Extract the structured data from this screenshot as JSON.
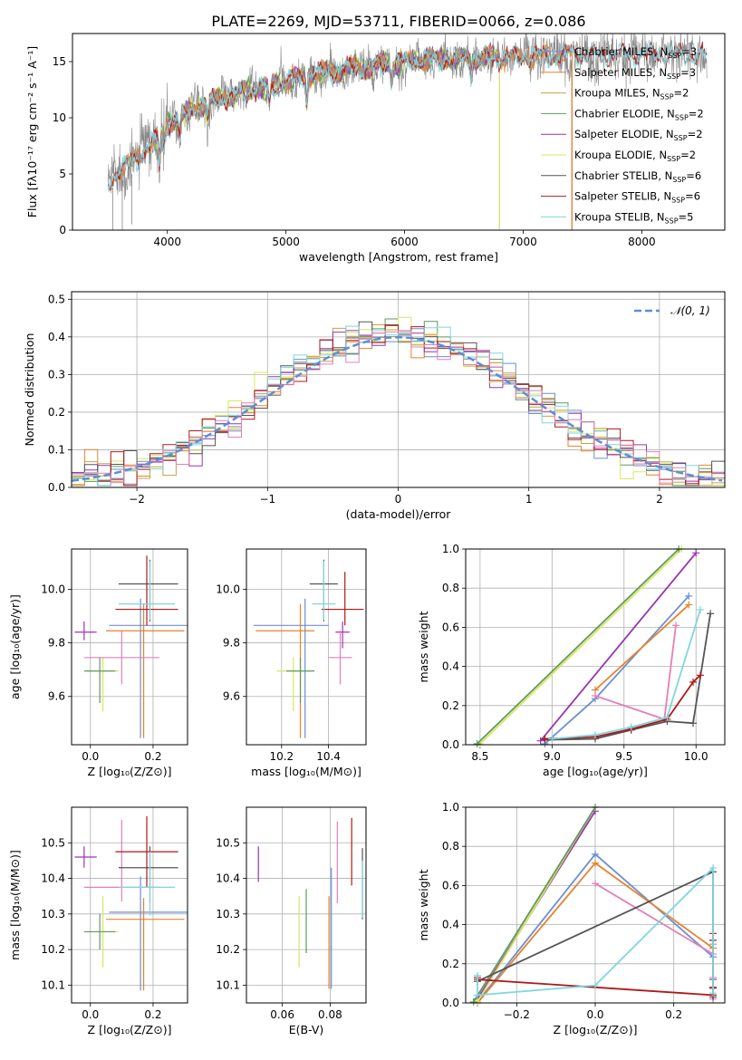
{
  "title": "PLATE=2269, MJD=53711, FIBERID=0066, z=0.086",
  "colors": {
    "chabrier_miles": "#6b8fd4",
    "salpeter_miles": "#e8822d",
    "kroupa_miles": "#c8a04a",
    "chabrier_elodie": "#5f9a5f",
    "salpeter_elodie": "#9a35b0",
    "kroupa_elodie": "#d7e860",
    "chabrier_stelib": "#555555",
    "salpeter_stelib": "#b01818",
    "kroupa_stelib": "#7fd6df",
    "pink": "#e57fb8",
    "gauss": "#5b8fd6",
    "data": "#888888"
  },
  "chart_data": [
    {
      "id": "spectrum",
      "type": "line",
      "title": "PLATE=2269, MJD=53711, FIBERID=0066, z=0.086",
      "xlabel": "wavelength [Angstrom, rest frame]",
      "ylabel": "Flux [fλ10⁻¹⁷ erg cm⁻² s⁻¹ A⁻¹]",
      "xlim": [
        3200,
        8700
      ],
      "ylim": [
        0,
        17.5
      ],
      "xticks": [
        "4000",
        "5000",
        "6000",
        "7000",
        "8000"
      ],
      "xtick_values": [
        4000,
        5000,
        6000,
        7000,
        8000
      ],
      "yticks": [
        "0",
        "5",
        "10",
        "15"
      ],
      "ytick_values": [
        0,
        5,
        10,
        15
      ],
      "grid": false,
      "legend_position": "top-right",
      "legend": [
        {
          "name": "Chabrier MILES",
          "nssp": "3"
        },
        {
          "name": "Salpeter MILES",
          "nssp": "3"
        },
        {
          "name": "Kroupa MILES",
          "nssp": "2"
        },
        {
          "name": "Chabrier ELODIE",
          "nssp": "2"
        },
        {
          "name": "Salpeter ELODIE",
          "nssp": "2"
        },
        {
          "name": "Kroupa ELODIE",
          "nssp": "2"
        },
        {
          "name": "Chabrier STELIB",
          "nssp": "6"
        },
        {
          "name": "Salpeter STELIB",
          "nssp": "6"
        },
        {
          "name": "Kroupa STELIB",
          "nssp": "5"
        }
      ],
      "nssp_label": "N",
      "nssp_sub": "SSP",
      "trend": {
        "x": [
          3500,
          3700,
          3900,
          4000,
          4300,
          4600,
          4800,
          5000,
          5200,
          5500,
          5800,
          6000,
          6300,
          6600,
          6900,
          7200,
          7400
        ],
        "y": [
          4.5,
          6.0,
          8.0,
          9.5,
          11.2,
          12.2,
          12.7,
          13.2,
          13.8,
          14.3,
          14.7,
          15.0,
          15.2,
          15.3,
          15.4,
          15.5,
          15.6
        ]
      },
      "model_extent": {
        "miles": [
          3540,
          7410
        ],
        "elodie": [
          3900,
          6800
        ],
        "stelib": [
          3500,
          8550
        ]
      }
    },
    {
      "id": "residuals",
      "type": "bar",
      "xlabel": "(data-model)/error",
      "ylabel": "Normed distribution",
      "xlim": [
        -2.5,
        2.5
      ],
      "ylim": [
        0,
        0.52
      ],
      "xticks": [
        "−2",
        "−1",
        "0",
        "1",
        "2"
      ],
      "xtick_values": [
        -2,
        -1,
        0,
        1,
        2
      ],
      "yticks": [
        "0.0",
        "0.1",
        "0.2",
        "0.3",
        "0.4",
        "0.5"
      ],
      "ytick_values": [
        0,
        0.1,
        0.2,
        0.3,
        0.4,
        0.5
      ],
      "grid": true,
      "legend_position": "top-right",
      "legend_label": "𝒩(0, 1)",
      "bin_width": 0.1
    },
    {
      "id": "age_vs_z",
      "type": "scatter",
      "xlabel": "Z [log₁₀(Z/Z⊙)]",
      "ylabel": "age  [log₁₀(age/yr)]",
      "xlim": [
        -0.06,
        0.31
      ],
      "ylim": [
        9.42,
        10.15
      ],
      "xticks": [
        "0.0",
        "0.2"
      ],
      "xtick_values": [
        0,
        0.2
      ],
      "yticks": [
        "9.6",
        "9.8",
        "10.0"
      ],
      "ytick_values": [
        9.6,
        9.8,
        10.0
      ],
      "grid": true,
      "errorbars": [
        {
          "c": "chabrier_miles",
          "x": 0.16,
          "xerr": [
            0.1,
            0.15
          ],
          "y": 9.865,
          "yerr": [
            0.42,
            0.1
          ]
        },
        {
          "c": "salpeter_miles",
          "x": 0.17,
          "xerr": [
            0.12,
            0.13
          ],
          "y": 9.845,
          "yerr": [
            0.4,
            0.1
          ]
        },
        {
          "c": "salpeter_elodie",
          "x": -0.02,
          "xerr": [
            0.03,
            0.04
          ],
          "y": 9.84,
          "yerr": [
            0.03,
            0.04
          ]
        },
        {
          "c": "kroupa_elodie",
          "x": 0.04,
          "xerr": [
            0.05,
            0.05
          ],
          "y": 9.695,
          "yerr": [
            0.15,
            0.05
          ]
        },
        {
          "c": "chabrier_elodie",
          "x": 0.03,
          "xerr": [
            0.05,
            0.05
          ],
          "y": 9.695,
          "yerr": [
            0.12,
            0.05
          ]
        },
        {
          "c": "pink",
          "x": 0.1,
          "xerr": [
            0.12,
            0.12
          ],
          "y": 9.745,
          "yerr": [
            0.1,
            0.1
          ]
        },
        {
          "c": "chabrier_stelib",
          "x": 0.19,
          "xerr": [
            0.1,
            0.09
          ],
          "y": 10.02,
          "yerr": [
            0.14,
            0.09
          ]
        },
        {
          "c": "salpeter_stelib",
          "x": 0.18,
          "xerr": [
            0.1,
            0.1
          ],
          "y": 9.925,
          "yerr": [
            0.06,
            0.2
          ]
        },
        {
          "c": "kroupa_stelib",
          "x": 0.19,
          "xerr": [
            0.1,
            0.08
          ],
          "y": 9.945,
          "yerr": [
            0.06,
            0.16
          ]
        }
      ]
    },
    {
      "id": "age_vs_mass",
      "type": "scatter",
      "xlabel": "mass [log₁₀(M/M⊙)]",
      "ylabel": "",
      "xlim": [
        10.05,
        10.56
      ],
      "ylim": [
        9.42,
        10.15
      ],
      "xticks": [
        "10.2",
        "10.4"
      ],
      "xtick_values": [
        10.2,
        10.4
      ],
      "yticks": [
        "9.6",
        "9.8",
        "10.0"
      ],
      "ytick_values": [
        9.6,
        9.8,
        10.0
      ],
      "grid": true,
      "errorbars": [
        {
          "c": "chabrier_miles",
          "x": 10.3,
          "xerr": [
            0.22,
            0.1
          ],
          "y": 9.865,
          "yerr": [
            0.42,
            0.1
          ]
        },
        {
          "c": "salpeter_miles",
          "x": 10.28,
          "xerr": [
            0.19,
            0.06
          ],
          "y": 9.845,
          "yerr": [
            0.4,
            0.1
          ]
        },
        {
          "c": "salpeter_elodie",
          "x": 10.46,
          "xerr": [
            0.03,
            0.03
          ],
          "y": 9.84,
          "yerr": [
            0.06,
            0.04
          ]
        },
        {
          "c": "kroupa_elodie",
          "x": 10.25,
          "xerr": [
            0.07,
            0.07
          ],
          "y": 9.695,
          "yerr": [
            0.15,
            0.05
          ]
        },
        {
          "c": "chabrier_elodie",
          "x": 10.28,
          "xerr": [
            0.06,
            0.06
          ],
          "y": 9.695,
          "yerr": [
            0.12,
            0.05
          ]
        },
        {
          "c": "pink",
          "x": 10.45,
          "xerr": [
            0.05,
            0.05
          ],
          "y": 9.745,
          "yerr": [
            0.1,
            0.1
          ]
        },
        {
          "c": "chabrier_stelib",
          "x": 10.38,
          "xerr": [
            0.06,
            0.06
          ],
          "y": 10.02,
          "yerr": [
            0.14,
            0.09
          ]
        },
        {
          "c": "salpeter_stelib",
          "x": 10.47,
          "xerr": [
            0.1,
            0.08
          ],
          "y": 9.925,
          "yerr": [
            0.06,
            0.14
          ]
        },
        {
          "c": "kroupa_stelib",
          "x": 10.38,
          "xerr": [
            0.05,
            0.05
          ],
          "y": 9.945,
          "yerr": [
            0.06,
            0.16
          ]
        }
      ]
    },
    {
      "id": "weight_vs_age",
      "type": "line",
      "xlabel": "age  [log₁₀(age/yr)]",
      "ylabel": "mass weight",
      "xlim": [
        8.4,
        10.2
      ],
      "ylim": [
        0,
        1
      ],
      "xticks": [
        "8.5",
        "9.0",
        "9.5",
        "10.0"
      ],
      "xtick_values": [
        8.5,
        9.0,
        9.5,
        10.0
      ],
      "yticks": [
        "0.0",
        "0.2",
        "0.4",
        "0.6",
        "0.8",
        "1.0"
      ],
      "ytick_values": [
        0,
        0.2,
        0.4,
        0.6,
        0.8,
        1.0
      ],
      "grid": true,
      "series": [
        {
          "c": "chabrier_miles",
          "x": [
            8.95,
            9.3,
            9.95
          ],
          "y": [
            0.005,
            0.235,
            0.76
          ]
        },
        {
          "c": "salpeter_miles",
          "x": [
            9.3,
            9.95
          ],
          "y": [
            0.28,
            0.715
          ]
        },
        {
          "c": "salpeter_elodie",
          "x": [
            8.92,
            10.0
          ],
          "y": [
            0.02,
            0.98
          ]
        },
        {
          "c": "kroupa_elodie",
          "x": [
            8.5,
            9.9
          ],
          "y": [
            0.005,
            1.0
          ]
        },
        {
          "c": "chabrier_elodie",
          "x": [
            8.48,
            9.88
          ],
          "y": [
            0.005,
            1.0
          ]
        },
        {
          "c": "pink",
          "x": [
            9.3,
            9.78,
            9.86
          ],
          "y": [
            0.25,
            0.13,
            0.61
          ]
        },
        {
          "c": "chabrier_stelib",
          "x": [
            8.95,
            9.3,
            9.55,
            9.8,
            9.98,
            10.1
          ],
          "y": [
            0.025,
            0.03,
            0.075,
            0.12,
            0.11,
            0.67
          ]
        },
        {
          "c": "salpeter_stelib",
          "x": [
            8.95,
            9.3,
            9.55,
            9.8,
            9.98,
            10.03
          ],
          "y": [
            0.03,
            0.04,
            0.08,
            0.13,
            0.32,
            0.355
          ]
        },
        {
          "c": "kroupa_stelib",
          "x": [
            9.0,
            9.3,
            9.55,
            9.8,
            10.03
          ],
          "y": [
            0.03,
            0.05,
            0.09,
            0.14,
            0.69
          ]
        }
      ]
    },
    {
      "id": "mass_vs_z",
      "type": "scatter",
      "xlabel": "Z [log₁₀(Z/Z⊙)]",
      "ylabel": "mass [log₁₀(M/M⊙)]",
      "xlim": [
        -0.06,
        0.31
      ],
      "ylim": [
        10.05,
        10.6
      ],
      "xticks": [
        "0.0",
        "0.2"
      ],
      "xtick_values": [
        0,
        0.2
      ],
      "yticks": [
        "10.1",
        "10.2",
        "10.3",
        "10.4",
        "10.5"
      ],
      "ytick_values": [
        10.1,
        10.2,
        10.3,
        10.4,
        10.5
      ],
      "grid": true,
      "errorbars": [
        {
          "c": "chabrier_miles",
          "x": 0.16,
          "xerr": [
            0.1,
            0.15
          ],
          "y": 10.305,
          "yerr": [
            0.22,
            0.1
          ]
        },
        {
          "c": "salpeter_miles",
          "x": 0.17,
          "xerr": [
            0.12,
            0.13
          ],
          "y": 10.285,
          "yerr": [
            0.2,
            0.06
          ]
        },
        {
          "c": "salpeter_elodie",
          "x": -0.02,
          "xerr": [
            0.03,
            0.04
          ],
          "y": 10.46,
          "yerr": [
            0.03,
            0.03
          ]
        },
        {
          "c": "kroupa_elodie",
          "x": 0.04,
          "xerr": [
            0.05,
            0.05
          ],
          "y": 10.25,
          "yerr": [
            0.1,
            0.1
          ]
        },
        {
          "c": "chabrier_elodie",
          "x": 0.03,
          "xerr": [
            0.05,
            0.05
          ],
          "y": 10.25,
          "yerr": [
            0.05,
            0.05
          ]
        },
        {
          "c": "pink",
          "x": 0.1,
          "xerr": [
            0.12,
            0.12
          ],
          "y": 10.375,
          "yerr": [
            0.04,
            0.19
          ]
        },
        {
          "c": "chabrier_stelib",
          "x": 0.19,
          "xerr": [
            0.1,
            0.09
          ],
          "y": 10.43,
          "yerr": [
            0.1,
            0.06
          ]
        },
        {
          "c": "salpeter_stelib",
          "x": 0.18,
          "xerr": [
            0.1,
            0.1
          ],
          "y": 10.475,
          "yerr": [
            0.1,
            0.1
          ]
        },
        {
          "c": "kroupa_stelib",
          "x": 0.19,
          "xerr": [
            0.1,
            0.08
          ],
          "y": 10.375,
          "yerr": [
            0.08,
            0.1
          ]
        }
      ]
    },
    {
      "id": "mass_vs_ebv",
      "type": "scatter",
      "xlabel": "E(B-V)",
      "ylabel": "",
      "xlim": [
        0.045,
        0.095
      ],
      "ylim": [
        10.05,
        10.6
      ],
      "xticks": [
        "0.06",
        "0.08"
      ],
      "xtick_values": [
        0.06,
        0.08
      ],
      "yticks": [
        "10.1",
        "10.2",
        "10.3",
        "10.4",
        "10.5"
      ],
      "ytick_values": [
        10.1,
        10.2,
        10.3,
        10.4,
        10.5
      ],
      "grid": true,
      "errorbars": [
        {
          "c": "salpeter_elodie",
          "x": 0.05,
          "xerr": [
            0,
            0
          ],
          "y": 10.44,
          "yerr": [
            0.05,
            0.05
          ]
        },
        {
          "c": "kroupa_elodie",
          "x": 0.067,
          "xerr": [
            0,
            0
          ],
          "y": 10.25,
          "yerr": [
            0.1,
            0.1
          ]
        },
        {
          "c": "chabrier_elodie",
          "x": 0.07,
          "xerr": [
            0,
            0
          ],
          "y": 10.28,
          "yerr": [
            0.09,
            0.09
          ]
        },
        {
          "c": "salpeter_miles",
          "x": 0.0795,
          "xerr": [
            0,
            0
          ],
          "y": 10.22,
          "yerr": [
            0.13,
            0.13
          ]
        },
        {
          "c": "chabrier_miles",
          "x": 0.0805,
          "xerr": [
            0,
            0
          ],
          "y": 10.26,
          "yerr": [
            0.17,
            0.17
          ]
        },
        {
          "c": "pink",
          "x": 0.083,
          "xerr": [
            0,
            0
          ],
          "y": 10.445,
          "yerr": [
            0.115,
            0.115
          ]
        },
        {
          "c": "salpeter_stelib",
          "x": 0.089,
          "xerr": [
            0,
            0
          ],
          "y": 10.475,
          "yerr": [
            0.095,
            0.095
          ]
        },
        {
          "c": "chabrier_stelib",
          "x": 0.0935,
          "xerr": [
            0,
            0
          ],
          "y": 10.385,
          "yerr": [
            0.1,
            0.1
          ]
        },
        {
          "c": "kroupa_stelib",
          "x": 0.0935,
          "xerr": [
            0,
            0
          ],
          "y": 10.37,
          "yerr": [
            0.08,
            0.08
          ]
        }
      ]
    },
    {
      "id": "weight_vs_z",
      "type": "line",
      "xlabel": "Z [log₁₀(Z/Z⊙)]",
      "ylabel": "mass weight",
      "xlim": [
        -0.33,
        0.33
      ],
      "ylim": [
        0,
        1
      ],
      "xticks": [
        "−0.2",
        "0.0",
        "0.2"
      ],
      "xtick_values": [
        -0.2,
        0,
        0.2
      ],
      "yticks": [
        "0.0",
        "0.2",
        "0.4",
        "0.6",
        "0.8",
        "1.0"
      ],
      "ytick_values": [
        0,
        0.2,
        0.4,
        0.6,
        0.8,
        1.0
      ],
      "grid": true,
      "series": [
        {
          "c": "chabrier_miles",
          "x": [
            -0.3,
            0.0,
            0.3
          ],
          "y": [
            0.005,
            0.76,
            0.235
          ]
        },
        {
          "c": "salpeter_miles",
          "x": [
            -0.3,
            0.0,
            0.3
          ],
          "y": [
            0.0,
            0.715,
            0.28
          ]
        },
        {
          "c": "salpeter_elodie",
          "x": [
            -0.3,
            0.0
          ],
          "y": [
            0.02,
            0.98
          ]
        },
        {
          "c": "kroupa_elodie",
          "x": [
            -0.3,
            0.0
          ],
          "y": [
            0.005,
            1.0
          ]
        },
        {
          "c": "chabrier_elodie",
          "x": [
            -0.31,
            0.0
          ],
          "y": [
            0.005,
            1.0
          ]
        },
        {
          "c": "pink",
          "x": [
            0.0,
            0.3,
            0.3,
            0.3
          ],
          "y": [
            0.61,
            0.25,
            0.13,
            0.02
          ]
        },
        {
          "c": "chabrier_stelib",
          "x": [
            -0.3,
            0.3,
            0.3,
            0.3,
            0.3,
            0.3
          ],
          "y": [
            0.11,
            0.67,
            0.3,
            0.12,
            0.075,
            0.03
          ]
        },
        {
          "c": "salpeter_stelib",
          "x": [
            -0.3,
            -0.3,
            0.3,
            0.3,
            0.3,
            0.3
          ],
          "y": [
            0.13,
            0.12,
            0.04,
            0.355,
            0.32,
            0.08
          ]
        },
        {
          "c": "kroupa_stelib",
          "x": [
            -0.3,
            -0.3,
            0.0,
            0.3,
            0.3,
            0.3
          ],
          "y": [
            0.14,
            0.04,
            0.09,
            0.69,
            0.3,
            0.05
          ]
        }
      ]
    }
  ]
}
